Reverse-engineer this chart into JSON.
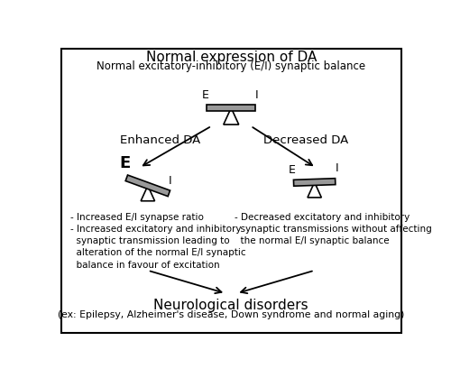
{
  "title1": "Normal expression of DA",
  "title2": "Normal excitatory-inhibitory (E/I) synaptic balance",
  "left_label": "Enhanced DA",
  "right_label": "Decreased DA",
  "left_text": "- Increased E/I synapse ratio\n- Increased excitatory and inhibitory\n  synaptic transmission leading to\n  alteration of the normal E/I synaptic\n  balance in favour of excitation",
  "right_text": "- Decreased excitatory and inhibitory\n  synaptic transmissions without affecting\n  the normal E/I synaptic balance",
  "bottom_title": "Neurological disorders",
  "bottom_subtitle": "(ex: Epilepsy, Alzheimer's disease, Down syndrome and normal aging)",
  "bg_color": "#ffffff",
  "border_color": "#000000",
  "bar_color": "#999999",
  "text_color": "#000000"
}
